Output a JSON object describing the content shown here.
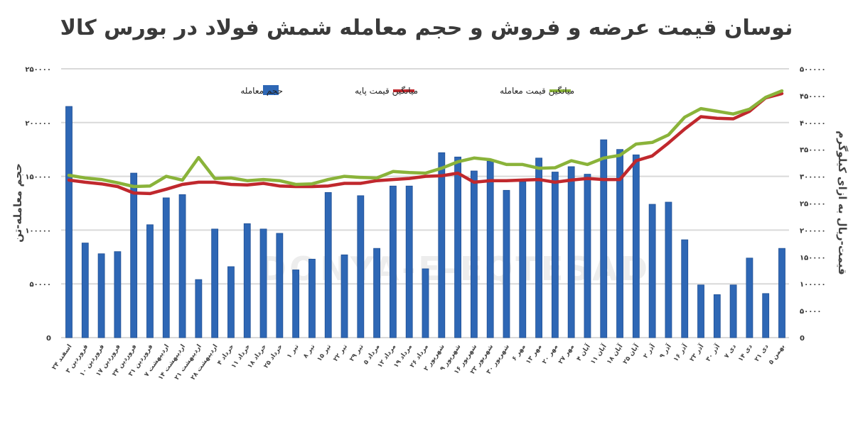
{
  "chart_data": {
    "type": "bar+line",
    "title": "نوسان قیمت عرضه و فروش و حجم معامله شمش فولاد در بورس کالا",
    "watermark": "DONYA-E-EQTESAD",
    "left_axis": {
      "label": "حجم معامله-تن",
      "range": [
        0,
        250000
      ],
      "ticks": [
        "0",
        "۵۰۰۰۰",
        "۱۰۰۰۰۰",
        "۱۵۰۰۰۰",
        "۲۰۰۰۰۰",
        "۲۵۰۰۰۰"
      ],
      "tick_values": [
        0,
        50000,
        100000,
        150000,
        200000,
        250000
      ]
    },
    "right_axis": {
      "label": "قیمت-ریال به ازای کیلوگرم",
      "range": [
        0,
        500000
      ],
      "ticks": [
        "0",
        "۵۰۰۰۰",
        "۱۰۰۰۰۰",
        "۱۵۰۰۰۰",
        "۲۰۰۰۰۰",
        "۲۵۰۰۰۰",
        "۳۰۰۰۰۰",
        "۳۵۰۰۰۰",
        "۴۰۰۰۰۰",
        "۴۵۰۰۰۰",
        "۵۰۰۰۰۰"
      ],
      "tick_values": [
        0,
        50000,
        100000,
        150000,
        200000,
        250000,
        300000,
        350000,
        400000,
        450000,
        500000
      ]
    },
    "grid": true,
    "legend_position": "top",
    "legend": [
      {
        "label": "حجم معامله",
        "type": "bar",
        "color": "#2E67B5"
      },
      {
        "label": "میانگین قیمت پایه",
        "type": "line",
        "color": "#C0282D"
      },
      {
        "label": "میانگین قیمت معامله",
        "type": "line",
        "color": "#8AB33A"
      }
    ],
    "categories": [
      "۲۴ اسفند",
      "۳ فروردین",
      "۱۰ فروردین",
      "۱۷ فروردین",
      "۲۴ فروردین",
      "۳۱ فروردین",
      "۷ اردیبهشت",
      "۱۴ اردیبهشت",
      "۲۱ اردیبهشت",
      "۲۸ اردیبهشت",
      "۴ خرداد",
      "۱۱ خرداد",
      "۱۸ خرداد",
      "۲۵ خرداد",
      "۱ تیر",
      "۸ تیر",
      "۱۵ تیر",
      "۲۲ تیر",
      "۲۹ تیر",
      "۵ مرداد",
      "۱۲ مرداد",
      "۱۹ مرداد",
      "۲۶ مرداد",
      "۲ شهریور",
      "۹ شهریور",
      "۱۶ شهریور",
      "۲۳ شهریور",
      "۳۰ شهریور",
      "۶ مهر",
      "۱۳ مهر",
      "۲۰ مهر",
      "۲۷ مهر",
      "۴ آبان",
      "۱۱ آبان",
      "۱۸ آبان",
      "۲۵ آبان",
      "۲ آذر",
      "۹ آذر",
      "۱۶ آذر",
      "۲۳ آذر",
      "۳۰ آذر",
      "۷ دی",
      "۱۴ دی",
      "۲۱ دی",
      "۵ بهمن"
    ],
    "series": [
      {
        "name": "حجم معامله",
        "type": "bar",
        "axis": "left",
        "color": "#2E67B5",
        "values": [
          215000,
          88000,
          78000,
          80000,
          153000,
          105000,
          130000,
          133000,
          54000,
          101000,
          66000,
          106000,
          101000,
          97000,
          63000,
          73000,
          135000,
          77000,
          132000,
          83000,
          141000,
          141000,
          64000,
          172000,
          168000,
          155000,
          164000,
          137000,
          145000,
          167000,
          154000,
          159000,
          152000,
          184000,
          175000,
          170000,
          124000,
          126000,
          91000,
          49000,
          40000,
          49000,
          74000,
          41000,
          83000
        ]
      },
      {
        "name": "میانگین قیمت پایه",
        "type": "line",
        "axis": "right",
        "color": "#C0282D",
        "values": [
          293000,
          289000,
          286000,
          281000,
          269000,
          268000,
          276000,
          285000,
          289000,
          289000,
          285000,
          284000,
          287000,
          282000,
          281000,
          281000,
          282000,
          287000,
          287000,
          292000,
          294000,
          296000,
          300000,
          301000,
          306000,
          289000,
          292000,
          292000,
          293000,
          294000,
          289000,
          293000,
          296000,
          294000,
          294000,
          329000,
          338000,
          362000,
          388000,
          411000,
          408000,
          407000,
          421000,
          446000,
          454000
        ]
      },
      {
        "name": "میانگین قیمت معامله",
        "type": "line",
        "axis": "right",
        "color": "#8AB33A",
        "values": [
          302000,
          297000,
          294000,
          288000,
          281000,
          282000,
          300000,
          293000,
          335000,
          296000,
          297000,
          292000,
          294000,
          292000,
          285000,
          286000,
          294000,
          300000,
          298000,
          297000,
          309000,
          307000,
          306000,
          315000,
          327000,
          334000,
          331000,
          322000,
          322000,
          315000,
          316000,
          329000,
          322000,
          334000,
          339000,
          360000,
          363000,
          377000,
          410000,
          426000,
          421000,
          416000,
          425000,
          447000,
          459000
        ]
      }
    ]
  }
}
